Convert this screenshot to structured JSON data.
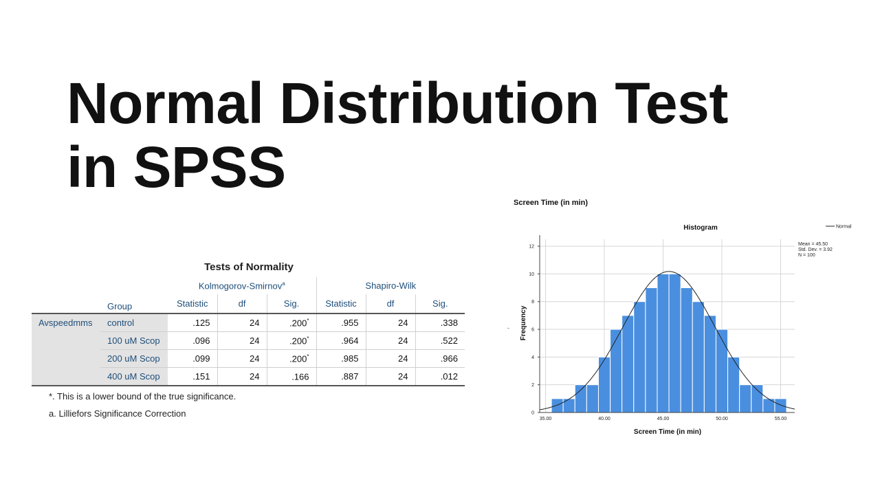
{
  "slide": {
    "title_line1": "Normal Distribution Test",
    "title_line2": "in SPSS"
  },
  "normality_table": {
    "title": "Tests of Normality",
    "ks_label": "Kolmogorov-Smirnov",
    "ks_sup": "a",
    "sw_label": "Shapiro-Wilk",
    "group_label": "Group",
    "col_statistic": "Statistic",
    "col_df": "df",
    "col_sig": "Sig.",
    "variable": "Avspeedmms",
    "rows": [
      {
        "group": "control",
        "ks_stat": ".125",
        "ks_df": "24",
        "ks_sig": ".200",
        "ks_star": "*",
        "sw_stat": ".955",
        "sw_df": "24",
        "sw_sig": ".338"
      },
      {
        "group": "100 uM Scop",
        "ks_stat": ".096",
        "ks_df": "24",
        "ks_sig": ".200",
        "ks_star": "*",
        "sw_stat": ".964",
        "sw_df": "24",
        "sw_sig": ".522"
      },
      {
        "group": "200 uM Scop",
        "ks_stat": ".099",
        "ks_df": "24",
        "ks_sig": ".200",
        "ks_star": "*",
        "sw_stat": ".985",
        "sw_df": "24",
        "sw_sig": ".966"
      },
      {
        "group": "400 uM Scop",
        "ks_stat": ".151",
        "ks_df": "24",
        "ks_sig": ".166",
        "ks_star": "",
        "sw_stat": ".887",
        "sw_df": "24",
        "sw_sig": ".012"
      }
    ],
    "footnote_star": "*. This is a lower bound of the true significance.",
    "footnote_a": "a. Lilliefors Significance Correction"
  },
  "chart_data": {
    "type": "bar",
    "header": "Screen Time (in min)",
    "title": "Histogram",
    "xlabel": "Screen Time (in min)",
    "ylabel": "Frequency",
    "y_side_mark": "-",
    "xlim": [
      34.5,
      56.2
    ],
    "ylim": [
      0,
      12.5
    ],
    "bin_width": 1,
    "x_ticks": [
      "35.00",
      "40.00",
      "45.00",
      "50.00",
      "55.00"
    ],
    "y_ticks": [
      "0",
      "2",
      "4",
      "6",
      "8",
      "10",
      "12"
    ],
    "bins": [
      {
        "center": 36,
        "count": 1
      },
      {
        "center": 37,
        "count": 1
      },
      {
        "center": 38,
        "count": 2
      },
      {
        "center": 39,
        "count": 2
      },
      {
        "center": 40,
        "count": 4
      },
      {
        "center": 41,
        "count": 6
      },
      {
        "center": 42,
        "count": 7
      },
      {
        "center": 43,
        "count": 8
      },
      {
        "center": 44,
        "count": 9
      },
      {
        "center": 45,
        "count": 10
      },
      {
        "center": 46,
        "count": 10
      },
      {
        "center": 47,
        "count": 9
      },
      {
        "center": 48,
        "count": 8
      },
      {
        "center": 49,
        "count": 7
      },
      {
        "center": 50,
        "count": 6
      },
      {
        "center": 51,
        "count": 4
      },
      {
        "center": 52,
        "count": 2
      },
      {
        "center": 53,
        "count": 2
      },
      {
        "center": 54,
        "count": 1
      },
      {
        "center": 55,
        "count": 1
      }
    ],
    "normal_curve": {
      "mean": 45.5,
      "sd": 3.92,
      "n": 100
    },
    "legend": {
      "label": "Normal",
      "position": "top-right"
    },
    "stats_box": {
      "mean": "Mean = 45.50",
      "sd": "Std. Dev. = 3.92",
      "n": "N = 100"
    },
    "colors": {
      "bar": "#4a8fdf",
      "bar_edge": "#ffffff",
      "curve": "#222222",
      "grid": "#d6d6d6"
    }
  }
}
